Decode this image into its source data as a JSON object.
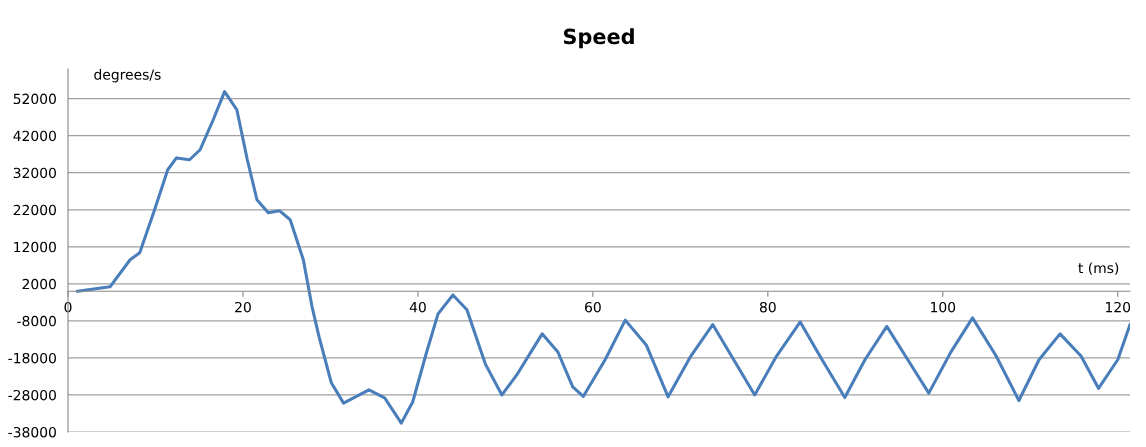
{
  "chart_data": {
    "type": "line",
    "title": "Speed",
    "xlabel": "t (ms)",
    "ylabel": "degrees/s",
    "xlim": [
      0,
      121.4
    ],
    "xticks": [
      0,
      20,
      40,
      60,
      80,
      100,
      120
    ],
    "ylim": [
      -38000,
      60000
    ],
    "yticks": [
      -38000,
      -28000,
      -18000,
      -8000,
      2000,
      12000,
      22000,
      32000,
      42000,
      52000
    ],
    "grid": "y",
    "legend": false,
    "marker": "none",
    "line_style": "solid",
    "series": [
      {
        "color": "#4a7ebb",
        "x": [
          1.1,
          4.8,
          7.1,
          8.2,
          9.9,
          11.4,
          12.4,
          13.9,
          15.1,
          16.6,
          17.9,
          19.3,
          20.5,
          21.6,
          22.9,
          24.2,
          25.4,
          26.9,
          27.9,
          28.7,
          30.1,
          31.5,
          34.4,
          36.2,
          38.1,
          39.4,
          41.0,
          42.3,
          44.0,
          45.6,
          47.7,
          49.6,
          51.3,
          54.2,
          56.0,
          57.7,
          58.9,
          61.4,
          63.7,
          66.1,
          68.6,
          71.2,
          73.7,
          76.1,
          78.5,
          81.0,
          83.7,
          86.2,
          88.8,
          91.1,
          93.6,
          96.0,
          98.4,
          100.9,
          103.4,
          106.1,
          108.7,
          111.0,
          113.4,
          115.8,
          117.8,
          120.0,
          121.4
        ],
        "values": [
          0,
          1200,
          8500,
          10400,
          22000,
          32800,
          36000,
          35500,
          38200,
          46300,
          53900,
          49000,
          35500,
          24700,
          21200,
          21700,
          19300,
          8500,
          -4200,
          -12300,
          -24700,
          -30200,
          -26600,
          -28800,
          -35600,
          -29900,
          -16400,
          -6100,
          -1000,
          -5000,
          -19600,
          -28000,
          -22600,
          -11500,
          -16400,
          -25800,
          -28400,
          -18500,
          -7800,
          -14500,
          -28500,
          -17500,
          -9000,
          -18500,
          -28000,
          -17500,
          -8300,
          -18500,
          -28700,
          -18500,
          -9500,
          -18500,
          -27500,
          -16500,
          -7200,
          -17500,
          -29500,
          -18500,
          -11500,
          -17500,
          -26200,
          -18500,
          -9000
        ]
      }
    ]
  }
}
